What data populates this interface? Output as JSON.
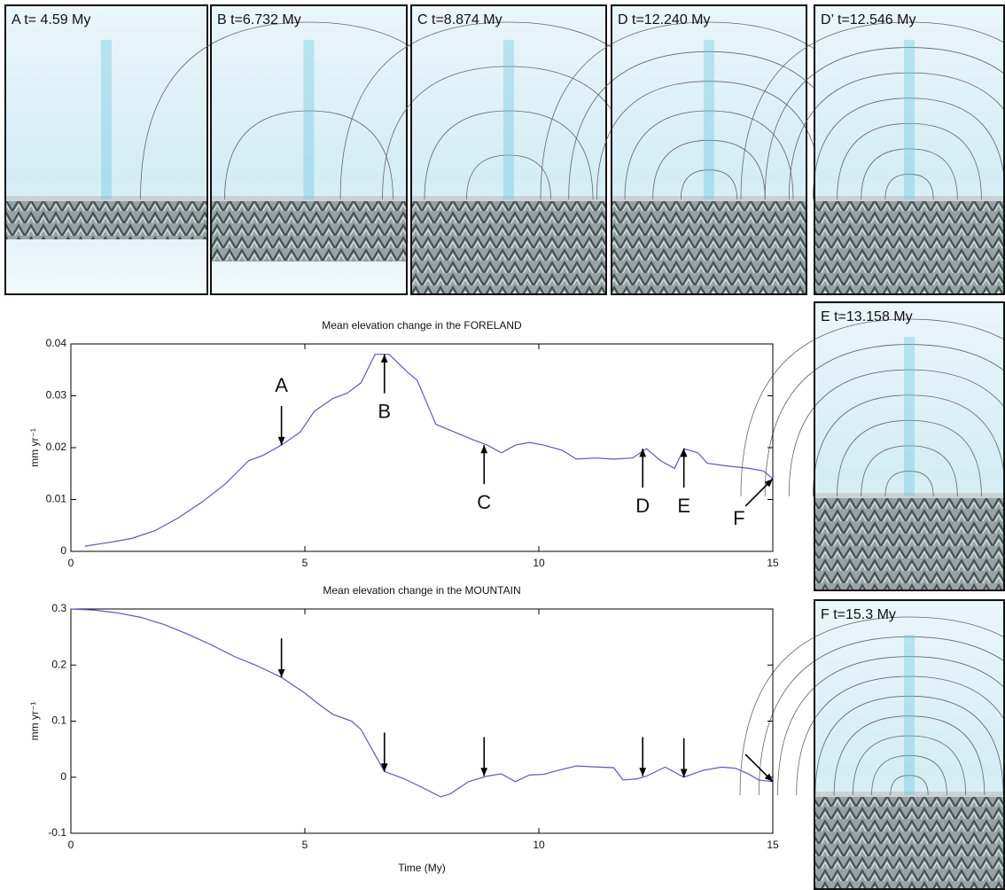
{
  "panels": [
    "A  t= 4.59 My",
    "B  t=6.732 My",
    "C  t=8.874 My",
    "D  t=12.240 My",
    "D’ t=12.546 My",
    "E  t=13.158 My",
    "F  t=15.3 My"
  ],
  "chart_data": [
    {
      "type": "line",
      "title": "Mean elevation change in the FORELAND",
      "ylabel": "mm yr⁻¹",
      "color": "#5a5ab8",
      "x": [
        0.3,
        0.8,
        1.3,
        1.8,
        2.3,
        2.8,
        3.3,
        3.8,
        4.1,
        4.5,
        4.9,
        5.2,
        5.6,
        5.9,
        6.2,
        6.5,
        6.8,
        7.2,
        7.4,
        7.8,
        8.2,
        8.6,
        8.9,
        9.2,
        9.5,
        9.8,
        10.1,
        10.5,
        10.8,
        11.2,
        11.6,
        12.0,
        12.3,
        12.6,
        12.9,
        13.1,
        13.4,
        13.6,
        14.0,
        14.5,
        14.8,
        15.0
      ],
      "values": [
        0.001,
        0.0017,
        0.0025,
        0.004,
        0.0065,
        0.0095,
        0.013,
        0.0175,
        0.0185,
        0.0205,
        0.023,
        0.027,
        0.0295,
        0.0305,
        0.0325,
        0.038,
        0.038,
        0.0345,
        0.033,
        0.0245,
        0.023,
        0.0215,
        0.0205,
        0.019,
        0.0205,
        0.021,
        0.0205,
        0.0195,
        0.0178,
        0.018,
        0.0178,
        0.018,
        0.0198,
        0.0175,
        0.016,
        0.0198,
        0.019,
        0.017,
        0.0165,
        0.016,
        0.0155,
        0.014
      ],
      "xlim": [
        0,
        15
      ],
      "xticks": [
        0,
        5,
        10,
        15
      ],
      "ylim": [
        0,
        0.04
      ],
      "yticks": [
        0,
        0.01,
        0.02,
        0.03,
        0.04
      ],
      "annotations": [
        {
          "text": "A",
          "x": 4.5,
          "y": 0.0205,
          "direction": "down"
        },
        {
          "text": "B",
          "x": 6.7,
          "y": 0.038,
          "direction": "up"
        },
        {
          "text": "C",
          "x": 8.83,
          "y": 0.0205,
          "direction": "up"
        },
        {
          "text": "D",
          "x": 12.22,
          "y": 0.0198,
          "direction": "up"
        },
        {
          "text": "E",
          "x": 13.1,
          "y": 0.0198,
          "direction": "up"
        },
        {
          "text": "F",
          "x": 15.0,
          "y": 0.014,
          "direction": "up-right"
        }
      ]
    },
    {
      "type": "line",
      "title": "Mean elevation change in the MOUNTAIN",
      "ylabel": "mm yr⁻¹",
      "xlabel": "Time (My)",
      "color": "#5a5ab8",
      "x": [
        0,
        0.5,
        1,
        1.5,
        2,
        2.5,
        3,
        3.5,
        4,
        4.5,
        5,
        5.3,
        5.6,
        6.0,
        6.2,
        6.5,
        6.7,
        7.1,
        7.5,
        7.9,
        8.1,
        8.5,
        8.9,
        9.2,
        9.5,
        9.8,
        10.1,
        10.4,
        10.8,
        11.3,
        11.6,
        11.8,
        12.1,
        12.3,
        12.7,
        13.1,
        13.5,
        13.9,
        14.2,
        14.5,
        14.7,
        15.0
      ],
      "values": [
        0.3,
        0.298,
        0.293,
        0.285,
        0.272,
        0.255,
        0.236,
        0.215,
        0.198,
        0.178,
        0.15,
        0.13,
        0.112,
        0.1,
        0.085,
        0.04,
        0.01,
        -0.002,
        -0.018,
        -0.035,
        -0.03,
        -0.008,
        0.002,
        0.006,
        -0.008,
        0.004,
        0.005,
        0.012,
        0.02,
        0.018,
        0.017,
        -0.005,
        -0.003,
        0.002,
        0.018,
        0.0,
        0.012,
        0.018,
        0.016,
        0.005,
        -0.005,
        -0.008
      ],
      "xlim": [
        0,
        15
      ],
      "xticks": [
        0,
        5,
        10,
        15
      ],
      "ylim": [
        -0.1,
        0.3
      ],
      "yticks": [
        -0.1,
        0,
        0.1,
        0.2,
        0.3
      ],
      "annotations": [
        {
          "x": 4.5,
          "y": 0.178,
          "direction": "down"
        },
        {
          "x": 6.7,
          "y": 0.01,
          "direction": "down"
        },
        {
          "x": 8.83,
          "y": 0.002,
          "direction": "down"
        },
        {
          "x": 12.22,
          "y": 0.002,
          "direction": "down"
        },
        {
          "x": 13.1,
          "y": 0.0,
          "direction": "down"
        },
        {
          "x": 15.0,
          "y": -0.008,
          "direction": "down-right"
        }
      ]
    }
  ]
}
